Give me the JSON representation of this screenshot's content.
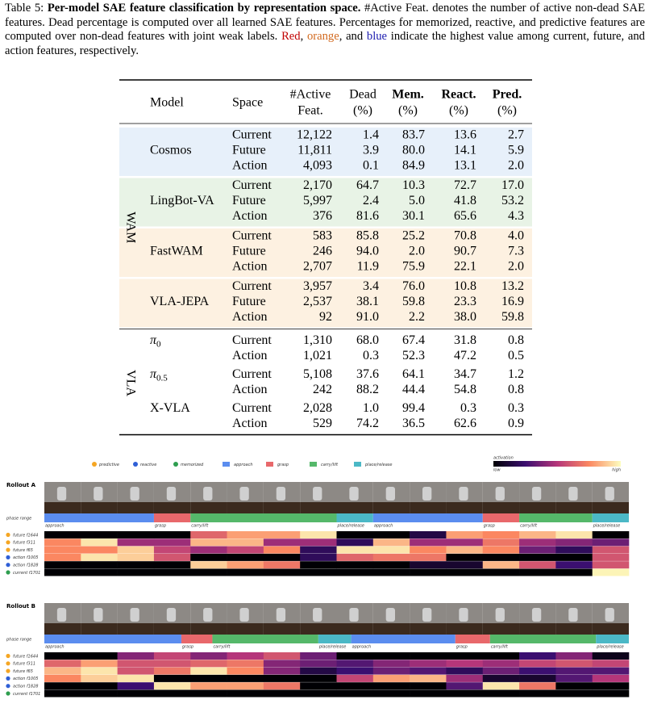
{
  "caption": {
    "parts": [
      {
        "text": "Table 5: "
      },
      {
        "text": "Per-model SAE feature classification by representation space.",
        "bold": true
      },
      {
        "text": " #Active Feat. denotes the number of active non-dead SAE features. Dead percentage is computed over all learned SAE features. Percentages for memorized, reactive, and predictive features are computed over non-dead features with joint weak labels. "
      },
      {
        "text": "Red",
        "color": "#c00000"
      },
      {
        "text": ", "
      },
      {
        "text": "orange",
        "color": "#d2691e"
      },
      {
        "text": ", and "
      },
      {
        "text": "blue",
        "color": "#1c1cb0"
      },
      {
        "text": " indicate the highest value among current, future, and action features, respectively."
      }
    ]
  },
  "table": {
    "header": [
      {
        "lines": [
          "Model"
        ]
      },
      {
        "lines": [
          "Space"
        ]
      },
      {
        "lines": [
          "#Active",
          "Feat."
        ]
      },
      {
        "lines": [
          "Dead",
          "(%)"
        ]
      },
      {
        "lines": [
          "Mem.",
          "(%)"
        ],
        "bold": true
      },
      {
        "lines": [
          "React.",
          "(%)"
        ],
        "bold": true
      },
      {
        "lines": [
          "Pred.",
          "(%)"
        ],
        "bold": true
      }
    ],
    "groups": [
      {
        "label": "WAM",
        "models": [
          {
            "name": "Cosmos",
            "color": "#e7f0fa",
            "rows": [
              {
                "space": "Current",
                "cells": [
                  "12,122",
                  "1.4",
                  "83.7",
                  "13.6",
                  "2.7"
                ]
              },
              {
                "space": "Future",
                "cells": [
                  "11,811",
                  "3.9",
                  {
                    "text": "80.0",
                    "color": "#d2691e"
                  },
                  "14.1",
                  "5.9"
                ]
              },
              {
                "space": "Action",
                "cells": [
                  "4,093",
                  "0.1",
                  {
                    "text": "84.9",
                    "color": "#1c1cb0"
                  },
                  "13.1",
                  "2.0"
                ]
              }
            ]
          },
          {
            "name": "LingBot-VA",
            "color": "#e8f3e6",
            "rows": [
              {
                "space": "Current",
                "cells": [
                  "2,170",
                  "64.7",
                  "10.3",
                  {
                    "text": "72.7",
                    "color": "#c00000"
                  },
                  {
                    "text": "17.0",
                    "color": "#c00000"
                  }
                ]
              },
              {
                "space": "Future",
                "cells": [
                  "5,997",
                  "2.4",
                  "5.0",
                  "41.8",
                  {
                    "text": "53.2",
                    "color": "#d2691e"
                  }
                ]
              },
              {
                "space": "Action",
                "cells": [
                  "376",
                  "81.6",
                  "30.1",
                  {
                    "text": "65.6",
                    "color": "#1c1cb0"
                  },
                  "4.3"
                ]
              }
            ]
          },
          {
            "name": "FastWAM",
            "color": "#fdf1e1",
            "rows": [
              {
                "space": "Current",
                "cells": [
                  "583",
                  "85.8",
                  "25.2",
                  {
                    "text": "70.8",
                    "color": "#d2691e"
                  },
                  "4.0"
                ]
              },
              {
                "space": "Future",
                "cells": [
                  "246",
                  "94.0",
                  "2.0",
                  "90.7",
                  "7.3"
                ]
              },
              {
                "space": "Action",
                "cells": [
                  "2,707",
                  "11.9",
                  "75.9",
                  "22.1",
                  "2.0"
                ]
              }
            ]
          },
          {
            "name": "VLA-JEPA",
            "color": "#fdf1e1",
            "rows": [
              {
                "space": "Current",
                "cells": [
                  "3,957",
                  "3.4",
                  "76.0",
                  "10.8",
                  "13.2"
                ]
              },
              {
                "space": "Future",
                "cells": [
                  "2,537",
                  "38.1",
                  "59.8",
                  "23.3",
                  "16.9"
                ]
              },
              {
                "space": "Action",
                "cells": [
                  "92",
                  "91.0",
                  "2.2",
                  "38.0",
                  {
                    "text": "59.8",
                    "color": "#1c1cb0"
                  }
                ]
              }
            ]
          }
        ]
      },
      {
        "label": "VLA",
        "models": [
          {
            "name": "π",
            "sub": "0",
            "rows": [
              {
                "space": "Current",
                "cells": [
                  "1,310",
                  "68.0",
                  "67.4",
                  "31.8",
                  "0.8"
                ]
              },
              {
                "space": "Action",
                "cells": [
                  "1,021",
                  "0.3",
                  "52.3",
                  "47.2",
                  "0.5"
                ]
              }
            ]
          },
          {
            "name": "π",
            "sub": "0.5",
            "rows": [
              {
                "space": "Current",
                "cells": [
                  "5,108",
                  "37.6",
                  "64.1",
                  "34.7",
                  "1.2"
                ]
              },
              {
                "space": "Action",
                "cells": [
                  "242",
                  "88.2",
                  "44.4",
                  "54.8",
                  "0.8"
                ]
              }
            ]
          },
          {
            "name": "X-VLA",
            "rows": [
              {
                "space": "Current",
                "cells": [
                  "2,028",
                  "1.0",
                  {
                    "text": "99.4",
                    "color": "#c00000"
                  },
                  "0.3",
                  "0.3"
                ]
              },
              {
                "space": "Action",
                "cells": [
                  "529",
                  "74.2",
                  "36.5",
                  "62.6",
                  "0.9"
                ]
              }
            ]
          }
        ]
      }
    ]
  },
  "figure": {
    "legend": [
      {
        "label": "predictive",
        "shape": "circle",
        "color": "#f5a623"
      },
      {
        "label": "reactive",
        "shape": "circle",
        "color": "#2f5fd6"
      },
      {
        "label": "memorized",
        "shape": "circle",
        "color": "#2e9e4f"
      },
      {
        "label": "approach",
        "shape": "square",
        "color": "#5b8def"
      },
      {
        "label": "grasp",
        "shape": "square",
        "color": "#e8686b"
      },
      {
        "label": "carry/lift",
        "shape": "square",
        "color": "#55b86a"
      },
      {
        "label": "place/release",
        "shape": "square",
        "color": "#4bb8c6"
      }
    ],
    "colorbar": {
      "title": "activation",
      "low": "low",
      "high": "high"
    },
    "rollouts": [
      {
        "title": "Rollout A",
        "phase_label": "phase range",
        "phases": [
          {
            "name": "approach",
            "start": 0,
            "end": 3
          },
          {
            "name": "grasp",
            "start": 3,
            "end": 4
          },
          {
            "name": "carry/lift",
            "start": 4,
            "end": 8
          },
          {
            "name": "place/release",
            "start": 8,
            "end": 9
          },
          {
            "name": "approach",
            "start": 9,
            "end": 12
          },
          {
            "name": "grasp",
            "start": 12,
            "end": 13
          },
          {
            "name": "carry/lift",
            "start": 13,
            "end": 15
          },
          {
            "name": "place/release",
            "start": 15,
            "end": 16
          }
        ],
        "features": [
          {
            "label": "future f1644",
            "color": "#f5a623",
            "values": [
              0,
              0,
              0,
              0,
              0.65,
              0.8,
              0.8,
              0.95,
              0,
              0,
              0.15,
              0.8,
              0.75,
              0.85,
              0.95,
              0
            ]
          },
          {
            "label": "future f311",
            "color": "#f5a623",
            "values": [
              0.75,
              0.95,
              0.45,
              0.45,
              0.85,
              0.85,
              0.45,
              0.45,
              0.2,
              0.85,
              0.45,
              0.45,
              0.7,
              0.45,
              0.4,
              0.35
            ]
          },
          {
            "label": "future f65",
            "color": "#f5a623",
            "values": [
              0.75,
              0.75,
              0.9,
              0.55,
              0.45,
              0.55,
              0.75,
              0.2,
              0.95,
              0.95,
              0.75,
              0.85,
              0.75,
              0.35,
              0.2,
              0.6
            ]
          },
          {
            "label": "action f1005",
            "color": "#2f5fd6",
            "values": [
              0.75,
              0.95,
              0.9,
              0.6,
              0,
              0,
              0,
              0.2,
              0.65,
              0.7,
              0.7,
              0,
              0,
              0,
              0,
              0.6
            ]
          },
          {
            "label": "action f1828",
            "color": "#2f5fd6",
            "values": [
              0,
              0,
              0,
              0,
              0.9,
              0.8,
              0.7,
              0,
              0,
              0,
              0.1,
              0.1,
              0.85,
              0.6,
              0.25,
              0.6
            ]
          },
          {
            "label": "current f1701",
            "color": "#2e9e4f",
            "values": [
              0,
              0,
              0,
              0,
              0,
              0,
              0,
              0,
              0,
              0,
              0,
              0,
              0,
              0,
              0,
              0.98
            ]
          }
        ]
      },
      {
        "title": "Rollout B",
        "phase_label": "phase range",
        "phases": [
          {
            "name": "approach",
            "start": 0,
            "end": 3.75
          },
          {
            "name": "grasp",
            "start": 3.75,
            "end": 4.6
          },
          {
            "name": "carry/lift",
            "start": 4.6,
            "end": 7.5
          },
          {
            "name": "place/release",
            "start": 7.5,
            "end": 8.4
          },
          {
            "name": "approach",
            "start": 8.4,
            "end": 11.25
          },
          {
            "name": "grasp",
            "start": 11.25,
            "end": 12.2
          },
          {
            "name": "carry/lift",
            "start": 12.2,
            "end": 15.1
          },
          {
            "name": "place/release",
            "start": 15.1,
            "end": 16
          }
        ],
        "features": [
          {
            "label": "future f1644",
            "color": "#f5a623",
            "values": [
              0,
              0,
              0.4,
              0.55,
              0.4,
              0.5,
              0.6,
              0.35,
              0,
              0,
              0,
              0,
              0,
              0.25,
              0.4,
              0.05
            ]
          },
          {
            "label": "future f311",
            "color": "#f5a623",
            "values": [
              0.65,
              0.8,
              0.6,
              0.6,
              0.65,
              0.7,
              0.4,
              0.35,
              0.3,
              0.4,
              0.45,
              0.5,
              0.45,
              0.55,
              0.6,
              0.55
            ]
          },
          {
            "label": "future f65",
            "color": "#f5a623",
            "values": [
              0.85,
              0.95,
              0.6,
              0.7,
              0.95,
              0.75,
              0.4,
              0.15,
              0.25,
              0.35,
              0.3,
              0.2,
              0.35,
              0.25,
              0.3,
              0.3
            ]
          },
          {
            "label": "action f1005",
            "color": "#2f5fd6",
            "values": [
              0.75,
              0.9,
              0.95,
              0,
              0,
              0,
              0,
              0,
              0.55,
              0.8,
              0.85,
              0.45,
              0.1,
              0.1,
              0.3,
              0.5
            ]
          },
          {
            "label": "action f1828",
            "color": "#2f5fd6",
            "values": [
              0,
              0,
              0.25,
              0.95,
              0.8,
              0.8,
              0.7,
              0,
              0,
              0,
              0,
              0.3,
              0.95,
              0.7,
              0,
              0
            ]
          },
          {
            "label": "current f1701",
            "color": "#2e9e4f",
            "values": [
              0,
              0,
              0,
              0,
              0,
              0,
              0,
              0,
              0,
              0,
              0,
              0,
              0,
              0,
              0,
              0
            ]
          }
        ]
      }
    ]
  }
}
